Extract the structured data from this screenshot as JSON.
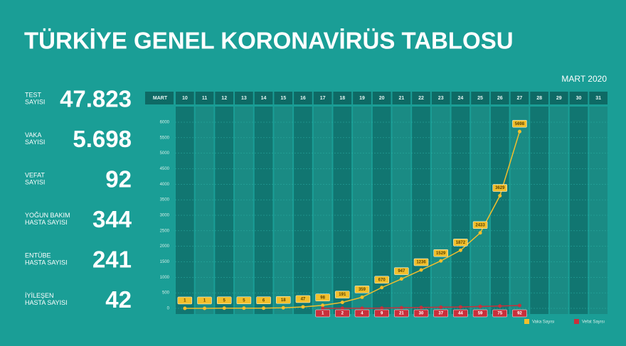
{
  "title": "TÜRKİYE GENEL KORONAVİRÜS TABLOSU",
  "stats": [
    {
      "label": [
        "TEST",
        "SAYISI"
      ],
      "value": "47.823"
    },
    {
      "label": [
        "VAKA",
        "SAYISI"
      ],
      "value": "5.698"
    },
    {
      "label": [
        "VEFAT",
        "SAYISI"
      ],
      "value": "92"
    },
    {
      "label": [
        "YOĞUN BAKIM",
        "HASTA SAYISI"
      ],
      "value": "344"
    },
    {
      "label": [
        "ENTÜBE",
        "HASTA SAYISI"
      ],
      "value": "241"
    },
    {
      "label": [
        "İYİLEŞEN",
        "HASTA SAYISI"
      ],
      "value": "42"
    }
  ],
  "chart_data": {
    "type": "line",
    "subtitle": "MART 2020",
    "x_label": "MART",
    "categories": [
      "10",
      "11",
      "12",
      "13",
      "14",
      "15",
      "16",
      "17",
      "18",
      "19",
      "20",
      "21",
      "22",
      "23",
      "24",
      "25",
      "26",
      "27",
      "28",
      "29",
      "30",
      "31"
    ],
    "series": [
      {
        "name": "Vaka Sayısı",
        "color": "#f2bf2c",
        "values": [
          1,
          1,
          5,
          5,
          6,
          18,
          47,
          98,
          191,
          359,
          670,
          947,
          1236,
          1529,
          1872,
          2433,
          3629,
          5698,
          null,
          null,
          null,
          null
        ]
      },
      {
        "name": "Vefat Sayısı",
        "color": "#c92f3b",
        "values": [
          null,
          null,
          null,
          null,
          null,
          null,
          null,
          1,
          2,
          4,
          9,
          21,
          30,
          37,
          44,
          59,
          75,
          92,
          null,
          null,
          null,
          null
        ]
      }
    ],
    "ylim": [
      0,
      6000
    ],
    "yticks": [
      0,
      500,
      1000,
      1500,
      2000,
      2500,
      3000,
      3500,
      4000,
      4500,
      5000,
      5500,
      6000
    ]
  }
}
